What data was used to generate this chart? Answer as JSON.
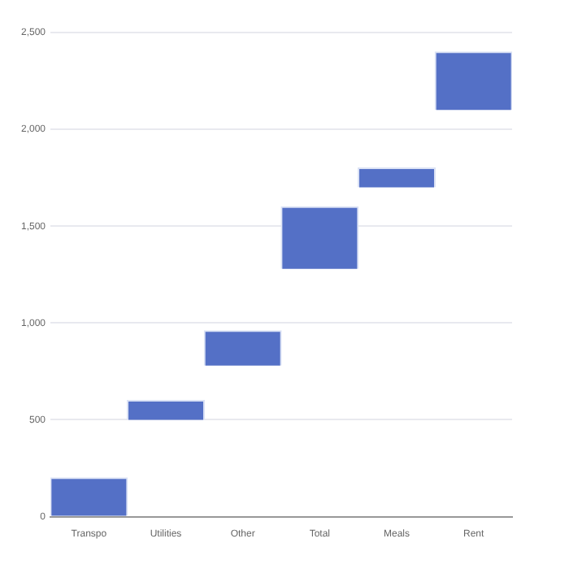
{
  "chart_data": {
    "type": "bar",
    "categories": [
      "Transpo",
      "Utilities",
      "Other",
      "Total",
      "Meals",
      "Rent"
    ],
    "values": [
      200,
      100,
      180,
      320,
      100,
      300
    ],
    "base": [
      0,
      500,
      780,
      1280,
      1700,
      2100
    ],
    "color": "#5470c6",
    "ylim": [
      0,
      2500
    ],
    "yticks": [
      {
        "value": 0,
        "label": "0"
      },
      {
        "value": 500,
        "label": "500"
      },
      {
        "value": 1000,
        "label": "1,000"
      },
      {
        "value": 1500,
        "label": "1,500"
      },
      {
        "value": 2000,
        "label": "2,000"
      },
      {
        "value": 2500,
        "label": "2,500"
      }
    ],
    "grid": "y",
    "legend": false
  }
}
